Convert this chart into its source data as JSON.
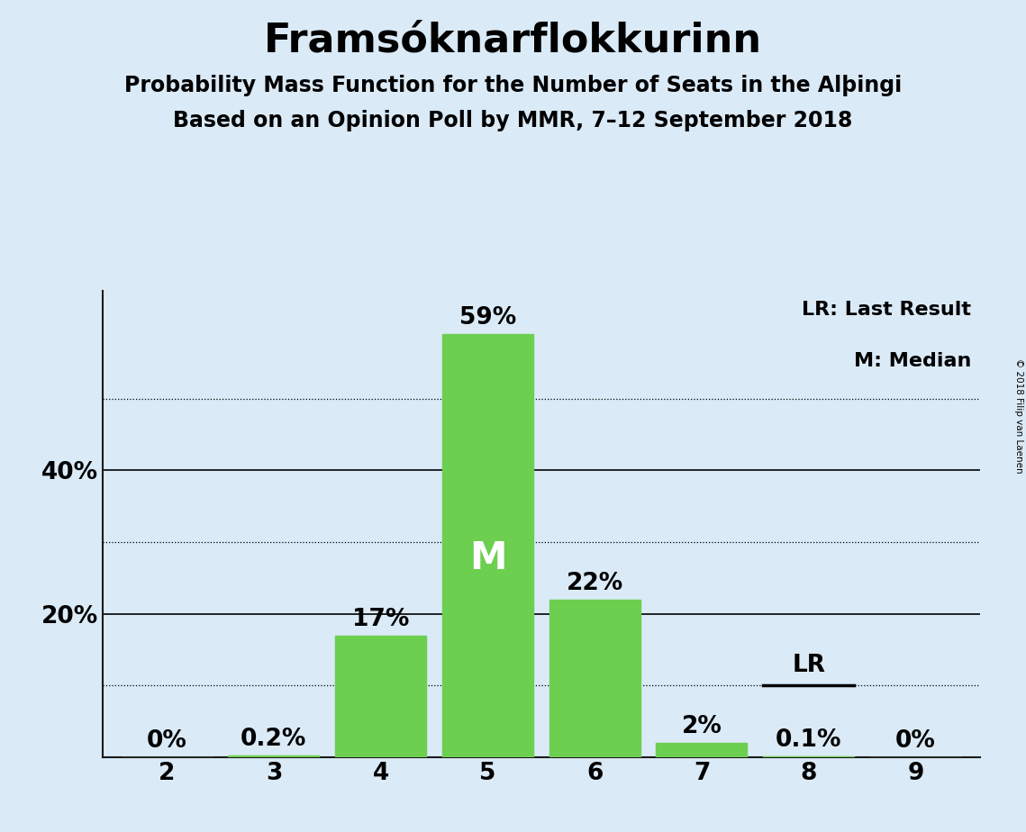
{
  "title": "Framsóknarflokkurinn",
  "subtitle1": "Probability Mass Function for the Number of Seats in the Alþingi",
  "subtitle2": "Based on an Opinion Poll by MMR, 7–12 September 2018",
  "copyright": "© 2018 Filip van Laenen",
  "seats": [
    2,
    3,
    4,
    5,
    6,
    7,
    8,
    9
  ],
  "probabilities": [
    0.0,
    0.002,
    0.17,
    0.59,
    0.22,
    0.02,
    0.001,
    0.0
  ],
  "bar_labels": [
    "0%",
    "0.2%",
    "17%",
    "59%",
    "22%",
    "2%",
    "0.1%",
    "0%"
  ],
  "bar_color": "#6dcf50",
  "background_color": "#daeaf7",
  "median_seat": 5,
  "median_label": "M",
  "lr_seat": 8,
  "lr_value": 0.1,
  "legend_lr": "LR: Last Result",
  "legend_m": "M: Median",
  "ylim": [
    0,
    0.65
  ],
  "dotted_gridlines": [
    0.1,
    0.3,
    0.5
  ],
  "solid_gridlines": [
    0.2,
    0.4
  ],
  "title_fontsize": 32,
  "subtitle_fontsize": 17,
  "tick_fontsize": 19,
  "bar_label_fontsize": 19,
  "median_fontsize": 30,
  "legend_fontsize": 16
}
